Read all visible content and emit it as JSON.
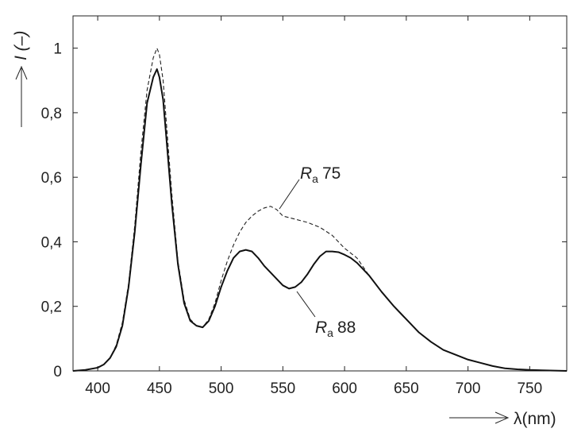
{
  "chart_data": {
    "type": "line",
    "title": "",
    "xlabel": "λ(nm)",
    "ylabel": "I (–)",
    "xlim": [
      380,
      780
    ],
    "ylim": [
      0,
      1.1
    ],
    "xticks": [
      400,
      450,
      500,
      550,
      600,
      650,
      700,
      750
    ],
    "yticks": [
      0,
      0.2,
      0.4,
      0.6,
      0.8,
      1
    ],
    "ytick_labels": [
      "0",
      "0,2",
      "0,4",
      "0,6",
      "0,8",
      "1"
    ],
    "grid": false,
    "annotations": [
      {
        "italic": "R",
        "sub": "a",
        "text": "75",
        "series": 0
      },
      {
        "italic": "R",
        "sub": "a",
        "text": "88",
        "series": 1
      }
    ],
    "series": [
      {
        "name": "Ra 75",
        "style": "dashed",
        "color": "#222222",
        "x": [
          380,
          390,
          400,
          405,
          410,
          415,
          420,
          425,
          430,
          435,
          440,
          445,
          448,
          450,
          453,
          455,
          460,
          465,
          470,
          475,
          480,
          485,
          490,
          495,
          500,
          505,
          510,
          515,
          520,
          525,
          530,
          535,
          540,
          545,
          550,
          555,
          560,
          570,
          580,
          590,
          600,
          605,
          610,
          620,
          630,
          640,
          650,
          660,
          670,
          680,
          690,
          700,
          710,
          720,
          730,
          740,
          750,
          760,
          770,
          780
        ],
        "y": [
          0.0,
          0.003,
          0.01,
          0.02,
          0.04,
          0.08,
          0.15,
          0.27,
          0.45,
          0.68,
          0.87,
          0.97,
          1.0,
          0.98,
          0.9,
          0.8,
          0.55,
          0.34,
          0.22,
          0.16,
          0.14,
          0.135,
          0.16,
          0.21,
          0.28,
          0.34,
          0.39,
          0.43,
          0.46,
          0.48,
          0.495,
          0.505,
          0.51,
          0.5,
          0.48,
          0.475,
          0.47,
          0.46,
          0.445,
          0.42,
          0.38,
          0.365,
          0.35,
          0.295,
          0.245,
          0.2,
          0.16,
          0.12,
          0.09,
          0.065,
          0.05,
          0.035,
          0.025,
          0.015,
          0.008,
          0.005,
          0.003,
          0.002,
          0.001,
          0.0
        ]
      },
      {
        "name": "Ra 88",
        "style": "solid",
        "color": "#111111",
        "x": [
          380,
          390,
          400,
          405,
          410,
          415,
          420,
          425,
          430,
          435,
          440,
          445,
          448,
          450,
          453,
          455,
          460,
          465,
          470,
          475,
          480,
          485,
          490,
          495,
          500,
          505,
          510,
          515,
          520,
          525,
          530,
          535,
          540,
          545,
          550,
          555,
          560,
          565,
          570,
          575,
          580,
          585,
          590,
          595,
          600,
          605,
          610,
          620,
          630,
          640,
          650,
          660,
          670,
          680,
          690,
          700,
          710,
          720,
          730,
          740,
          750,
          760,
          770,
          780
        ],
        "y": [
          0.0,
          0.003,
          0.01,
          0.02,
          0.04,
          0.075,
          0.14,
          0.26,
          0.43,
          0.64,
          0.83,
          0.91,
          0.935,
          0.91,
          0.84,
          0.75,
          0.52,
          0.33,
          0.21,
          0.155,
          0.14,
          0.135,
          0.155,
          0.2,
          0.26,
          0.31,
          0.35,
          0.37,
          0.375,
          0.37,
          0.35,
          0.325,
          0.305,
          0.285,
          0.265,
          0.255,
          0.26,
          0.275,
          0.3,
          0.33,
          0.355,
          0.37,
          0.37,
          0.368,
          0.36,
          0.35,
          0.335,
          0.295,
          0.245,
          0.2,
          0.16,
          0.12,
          0.09,
          0.065,
          0.05,
          0.035,
          0.025,
          0.015,
          0.008,
          0.005,
          0.003,
          0.002,
          0.001,
          0.0
        ]
      }
    ]
  }
}
